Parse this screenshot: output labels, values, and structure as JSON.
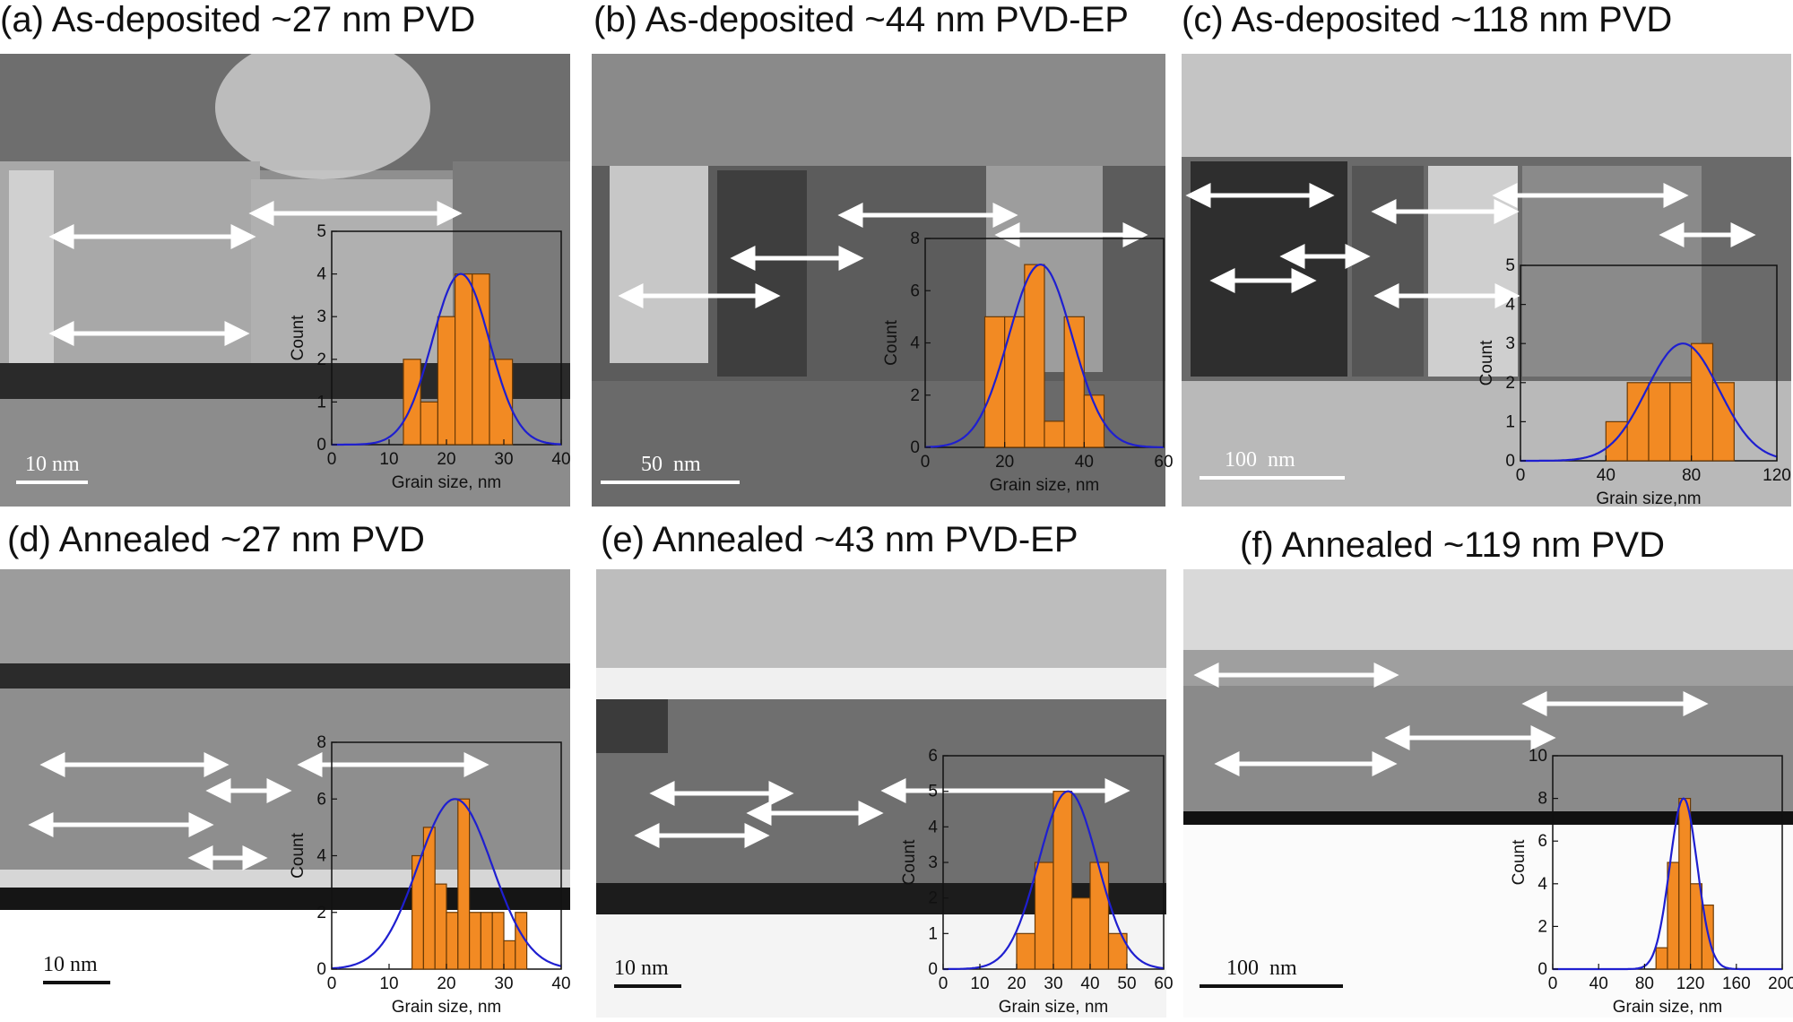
{
  "colors": {
    "bar": "#f28a23",
    "bar_edge": "#6b3a05",
    "fit": "#1f1fd0",
    "arrow": "#ffffff",
    "scalebar": "#ffffff"
  },
  "panels": [
    {
      "id": "a",
      "title": "(a) As-deposited ~27 nm PVD",
      "scale_label": "10 nm",
      "chart_data": {
        "type": "bar",
        "title": "",
        "xlabel": "Grain size, nm",
        "ylabel": "Count",
        "xlim": [
          0,
          40
        ],
        "ylim": [
          0,
          5
        ],
        "xticks": [
          "0",
          "10",
          "20",
          "30",
          "40"
        ],
        "yticks": [
          "0",
          "1",
          "2",
          "3",
          "4",
          "5"
        ],
        "bins": [
          [
            12.5,
            15.5,
            2
          ],
          [
            15.5,
            18.5,
            1
          ],
          [
            18.5,
            21.5,
            3
          ],
          [
            21.5,
            24.5,
            4
          ],
          [
            24.5,
            27.5,
            4
          ],
          [
            27.5,
            31.5,
            2
          ]
        ],
        "fit": {
          "mean": 22.5,
          "sd": 5.0,
          "peak": 4.0
        }
      }
    },
    {
      "id": "b",
      "title": "(b) As-deposited ~44 nm PVD-EP",
      "scale_label": "50  nm",
      "chart_data": {
        "type": "bar",
        "title": "",
        "xlabel": "Grain size, nm",
        "ylabel": "Count",
        "xlim": [
          0,
          60
        ],
        "ylim": [
          0,
          8
        ],
        "xticks": [
          "0",
          "20",
          "40",
          "60"
        ],
        "yticks": [
          "0",
          "2",
          "4",
          "6",
          "8"
        ],
        "bins": [
          [
            15,
            20,
            5
          ],
          [
            20,
            25,
            5
          ],
          [
            25,
            30,
            7
          ],
          [
            30,
            35,
            1
          ],
          [
            35,
            40,
            5
          ],
          [
            40,
            45,
            2
          ]
        ],
        "fit": {
          "mean": 29,
          "sd": 8,
          "peak": 7.0
        }
      }
    },
    {
      "id": "c",
      "title": "(c) As-deposited ~118 nm PVD",
      "scale_label": "100  nm",
      "chart_data": {
        "type": "bar",
        "title": "",
        "xlabel": "Grain size,nm",
        "ylabel": "Count",
        "xlim": [
          0,
          120
        ],
        "ylim": [
          0,
          5
        ],
        "xticks": [
          "0",
          "40",
          "80",
          "120"
        ],
        "yticks": [
          "0",
          "1",
          "2",
          "3",
          "4",
          "5"
        ],
        "bins": [
          [
            40,
            50,
            1
          ],
          [
            50,
            60,
            2
          ],
          [
            60,
            70,
            2
          ],
          [
            70,
            80,
            2
          ],
          [
            80,
            90,
            3
          ],
          [
            90,
            100,
            2
          ]
        ],
        "fit": {
          "mean": 76,
          "sd": 17,
          "peak": 3.0
        }
      }
    },
    {
      "id": "d",
      "title": "(d) Annealed ~27 nm PVD",
      "scale_label": "10 nm",
      "chart_data": {
        "type": "bar",
        "title": "",
        "xlabel": "Grain size, nm",
        "ylabel": "Count",
        "xlim": [
          0,
          40
        ],
        "ylim": [
          0,
          8
        ],
        "xticks": [
          "0",
          "10",
          "20",
          "30",
          "40"
        ],
        "yticks": [
          "0",
          "2",
          "4",
          "6",
          "8"
        ],
        "bins": [
          [
            14,
            16,
            4
          ],
          [
            16,
            18,
            5
          ],
          [
            18,
            20,
            3
          ],
          [
            20,
            22,
            2
          ],
          [
            22,
            24,
            6
          ],
          [
            24,
            26,
            2
          ],
          [
            26,
            28,
            2
          ],
          [
            28,
            30,
            2
          ],
          [
            30,
            32,
            1
          ],
          [
            32,
            34,
            2
          ]
        ],
        "fit": {
          "mean": 21.5,
          "sd": 6.5,
          "peak": 6.0
        }
      }
    },
    {
      "id": "e",
      "title": "(e) Annealed ~43 nm PVD-EP",
      "scale_label": "10 nm",
      "chart_data": {
        "type": "bar",
        "title": "",
        "xlabel": "Grain size, nm",
        "ylabel": "Count",
        "xlim": [
          0,
          60
        ],
        "ylim": [
          0,
          6
        ],
        "xticks": [
          "0",
          "10",
          "20",
          "30",
          "40",
          "50",
          "60"
        ],
        "yticks": [
          "0",
          "1",
          "2",
          "3",
          "4",
          "5",
          "6"
        ],
        "bins": [
          [
            20,
            25,
            1
          ],
          [
            25,
            30,
            3
          ],
          [
            30,
            35,
            5
          ],
          [
            35,
            40,
            2
          ],
          [
            40,
            45,
            3
          ],
          [
            45,
            50,
            1
          ]
        ],
        "fit": {
          "mean": 34,
          "sd": 8,
          "peak": 5.0
        }
      }
    },
    {
      "id": "f",
      "title": "(f) Annealed ~119 nm PVD",
      "scale_label": "100  nm",
      "chart_data": {
        "type": "bar",
        "title": "",
        "xlabel": "Grain size, nm",
        "ylabel": "Count",
        "xlim": [
          0,
          200
        ],
        "ylim": [
          0,
          10
        ],
        "xticks": [
          "0",
          "40",
          "80",
          "120",
          "160",
          "200"
        ],
        "yticks": [
          "0",
          "2",
          "4",
          "6",
          "8",
          "10"
        ],
        "bins": [
          [
            90,
            100,
            1
          ],
          [
            100,
            110,
            5
          ],
          [
            110,
            120,
            8
          ],
          [
            120,
            130,
            4
          ],
          [
            130,
            140,
            3
          ]
        ],
        "fit": {
          "mean": 114,
          "sd": 12,
          "peak": 8.0
        }
      }
    }
  ]
}
